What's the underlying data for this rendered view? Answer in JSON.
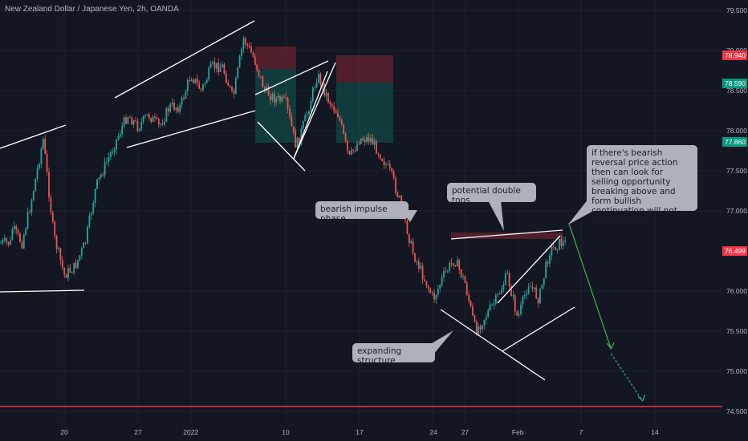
{
  "chart_data": {
    "type": "candlestick",
    "title": "New Zealand Dollar / Japanese Yen, 2h, OANDA",
    "ylim": [
      74.4,
      79.7
    ],
    "y_ticks": [
      "79.500",
      "79.000",
      "78.500",
      "78.000",
      "77.500",
      "77.000",
      "76.000",
      "75.500",
      "75.000",
      "74.500"
    ],
    "x_ticks": [
      "20",
      "27",
      "2022",
      "10",
      "17",
      "24",
      "27",
      "Feb",
      "7",
      "14"
    ],
    "price_badges": [
      {
        "label": "78.940",
        "color": "#f23645",
        "value": 78.94
      },
      {
        "label": "78.590",
        "color": "#089981",
        "value": 78.59
      },
      {
        "label": "77.860",
        "color": "#089981",
        "value": 77.86
      },
      {
        "label": "76.499",
        "color": "#f23645",
        "value": 76.499
      }
    ],
    "support_level": 74.58,
    "price_path": [
      {
        "d": "Dec 15",
        "p": 76.8
      },
      {
        "d": "Dec 16",
        "p": 76.6
      },
      {
        "d": "Dec 17",
        "p": 77.2
      },
      {
        "d": "Dec 18",
        "p": 77.9
      },
      {
        "d": "Dec 19",
        "p": 76.7
      },
      {
        "d": "Dec 20",
        "p": 76.2
      },
      {
        "d": "Dec 21",
        "p": 76.3
      },
      {
        "d": "Dec 22",
        "p": 76.6
      },
      {
        "d": "Dec 23",
        "p": 77.3
      },
      {
        "d": "Dec 24",
        "p": 77.6
      },
      {
        "d": "Dec 25",
        "p": 77.9
      },
      {
        "d": "Dec 26",
        "p": 78.2
      },
      {
        "d": "Dec 27",
        "p": 78.05
      },
      {
        "d": "Dec 28",
        "p": 78.2
      },
      {
        "d": "Dec 29",
        "p": 78.05
      },
      {
        "d": "Dec 30",
        "p": 78.3
      },
      {
        "d": "Dec 31",
        "p": 78.3
      },
      {
        "d": "Jan 1",
        "p": 78.7
      },
      {
        "d": "Jan 2",
        "p": 78.5
      },
      {
        "d": "Jan 3",
        "p": 78.8
      },
      {
        "d": "Jan 4",
        "p": 78.8
      },
      {
        "d": "Jan 5",
        "p": 78.4
      },
      {
        "d": "Jan 6",
        "p": 79.15
      },
      {
        "d": "Jan 7",
        "p": 78.9
      },
      {
        "d": "Jan 8",
        "p": 78.5
      },
      {
        "d": "Jan 9",
        "p": 78.4
      },
      {
        "d": "Jan 10",
        "p": 78.35
      },
      {
        "d": "Jan 11",
        "p": 77.8
      },
      {
        "d": "Jan 12",
        "p": 78.2
      },
      {
        "d": "Jan 13",
        "p": 78.7
      },
      {
        "d": "Jan 14",
        "p": 78.4
      },
      {
        "d": "Jan 15",
        "p": 78.2
      },
      {
        "d": "Jan 16",
        "p": 77.65
      },
      {
        "d": "Jan 17",
        "p": 77.9
      },
      {
        "d": "Jan 18",
        "p": 77.9
      },
      {
        "d": "Jan 19",
        "p": 77.7
      },
      {
        "d": "Jan 20",
        "p": 77.45
      },
      {
        "d": "Jan 21",
        "p": 77.05
      },
      {
        "d": "Jan 22",
        "p": 76.5
      },
      {
        "d": "Jan 23",
        "p": 76.2
      },
      {
        "d": "Jan 24",
        "p": 75.9
      },
      {
        "d": "Jan 25",
        "p": 76.2
      },
      {
        "d": "Jan 26",
        "p": 76.4
      },
      {
        "d": "Jan 27",
        "p": 76.1
      },
      {
        "d": "Jan 28",
        "p": 75.5
      },
      {
        "d": "Jan 29",
        "p": 75.7
      },
      {
        "d": "Jan 30",
        "p": 75.9
      },
      {
        "d": "Jan 31",
        "p": 76.2
      },
      {
        "d": "Feb 1",
        "p": 75.65
      },
      {
        "d": "Feb 2",
        "p": 76.1
      },
      {
        "d": "Feb 3",
        "p": 75.9
      },
      {
        "d": "Feb 4",
        "p": 76.5
      },
      {
        "d": "Feb 5",
        "p": 76.6
      }
    ],
    "projection": [
      {
        "d": "Feb 5",
        "p": 76.85
      },
      {
        "d": "Feb 9",
        "p": 75.28
      },
      {
        "d": "Feb 12",
        "p": 74.63
      }
    ],
    "annotations": [
      {
        "text": "bearish impulse phase"
      },
      {
        "text": "potential double tops"
      },
      {
        "text": "expanding structure"
      },
      {
        "text": "if there's bearish reversal price action then can look for selling opportunity breaking above and form bullish continuation will not confirm the sell"
      }
    ]
  }
}
